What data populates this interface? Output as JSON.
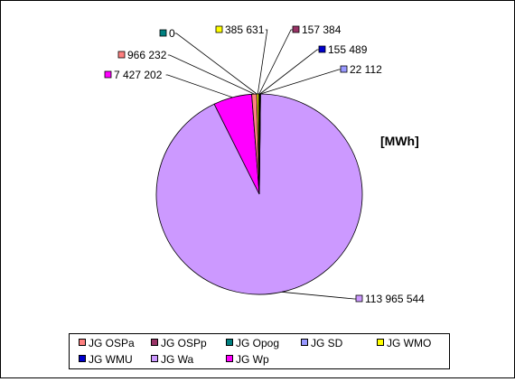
{
  "chart_data": {
    "type": "pie",
    "unit_label": "[MWh]",
    "series": [
      {
        "name": "JG Wa",
        "value": 113965544,
        "label": "113 965 544",
        "color": "#CC99FF"
      },
      {
        "name": "JG Wp",
        "value": 7427202,
        "label": "7 427 202",
        "color": "#FF00FF"
      },
      {
        "name": "JG OSPa",
        "value": 966232,
        "label": "966 232",
        "color": "#FF8080"
      },
      {
        "name": "JG Opog",
        "value": 0,
        "label": "0",
        "color": "#008080"
      },
      {
        "name": "JG WMO",
        "value": 385631,
        "label": "385 631",
        "color": "#FFFF00"
      },
      {
        "name": "JG OSPp",
        "value": 157384,
        "label": "157 384",
        "color": "#993366"
      },
      {
        "name": "JG WMU",
        "value": 155489,
        "label": "155 489",
        "color": "#0000CC"
      },
      {
        "name": "JG SD",
        "value": 22112,
        "label": "22 112",
        "color": "#9999FF"
      }
    ],
    "legend": {
      "position": "bottom",
      "order": [
        "JG OSPa",
        "JG OSPp",
        "JG Opog",
        "JG SD",
        "JG WMO",
        "JG WMU",
        "JG Wa",
        "JG Wp"
      ]
    }
  }
}
